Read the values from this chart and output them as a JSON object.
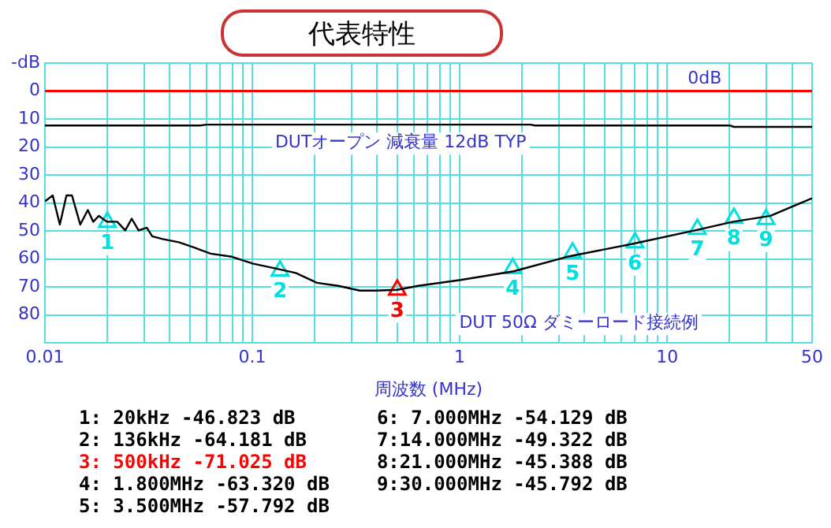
{
  "chart_data": {
    "type": "line",
    "title": "代表特性",
    "xlabel": "周波数 (MHz)",
    "log": "x",
    "grid": true,
    "legend": false,
    "line_style": "solid",
    "marker": "none",
    "xlim": [
      0.01,
      50
    ],
    "xticks": [
      0.01,
      {
        "value": 0.02,
        "label": null
      },
      {
        "value": 0.03,
        "label": null
      },
      {
        "value": 0.04,
        "label": null
      },
      {
        "value": 0.05,
        "label": null
      },
      {
        "value": 0.06,
        "label": null
      },
      {
        "value": 0.07,
        "label": null
      },
      {
        "value": 0.08,
        "label": null
      },
      {
        "value": 0.09,
        "label": null
      },
      0.1,
      {
        "value": 0.2,
        "label": null
      },
      {
        "value": 0.3,
        "label": null
      },
      {
        "value": 0.4,
        "label": null
      },
      {
        "value": 0.5,
        "label": null
      },
      {
        "value": 0.6,
        "label": null
      },
      {
        "value": 0.7,
        "label": null
      },
      {
        "value": 0.8,
        "label": null
      },
      {
        "value": 0.9,
        "label": null
      },
      1,
      {
        "value": 2,
        "label": null
      },
      {
        "value": 3,
        "label": null
      },
      {
        "value": 4,
        "label": null
      },
      {
        "value": 5,
        "label": null
      },
      {
        "value": 6,
        "label": null
      },
      {
        "value": 7,
        "label": null
      },
      {
        "value": 8,
        "label": null
      },
      {
        "value": 9,
        "label": null
      },
      10,
      {
        "value": 20,
        "label": null
      },
      {
        "value": 30,
        "label": null
      },
      {
        "value": 40,
        "label": null
      },
      50
    ],
    "ylim": [
      90,
      -10
    ],
    "yticks": [
      {
        "value": -10,
        "label": "-dB"
      },
      0,
      10,
      20,
      30,
      40,
      50,
      60,
      70,
      80
    ],
    "ref_lines": [
      {
        "axis": "y",
        "value": 0,
        "label": "0dB",
        "color": "#ff0000"
      }
    ],
    "series": [
      {
        "name": "DUTオープン 減衰量 12dB TYP",
        "color": "#000000",
        "x": [
          0.01,
          0.056,
          0.06,
          2.2,
          2.3,
          20,
          21,
          50
        ],
        "values": [
          12.3,
          12.3,
          12,
          12,
          12.3,
          12.3,
          12.8,
          12.8
        ]
      },
      {
        "name": "DUT 50Ω ダミーロード接続例",
        "color": "#000000",
        "x": [
          0.01,
          0.0109,
          0.0118,
          0.0127,
          0.0135,
          0.0148,
          0.0161,
          0.0171,
          0.0182,
          0.0199,
          0.0223,
          0.0244,
          0.0262,
          0.0283,
          0.031,
          0.0329,
          0.037,
          0.0442,
          0.0528,
          0.063,
          0.0797,
          0.101,
          0.128,
          0.162,
          0.205,
          0.26,
          0.33,
          0.395,
          0.5,
          0.63,
          1.01,
          1.82,
          3.3,
          6.8,
          13.6,
          20.8,
          31.5,
          39.5,
          50
        ],
        "values": [
          39.4,
          37.3,
          47.7,
          37.3,
          37.3,
          47.7,
          42.5,
          46.7,
          44.6,
          46.7,
          46.7,
          49.8,
          45.6,
          49.8,
          48.8,
          51.9,
          52.9,
          54,
          56,
          58.1,
          59.2,
          61.7,
          63.3,
          65,
          68.5,
          69.6,
          71.3,
          71.3,
          71,
          69.6,
          67.5,
          64.4,
          59.2,
          54.6,
          49.8,
          46.7,
          44.6,
          41.5,
          38.3
        ]
      },
      {
        "type": "scatter",
        "marker": "triangle",
        "x": [
          0.02,
          0.136,
          0.5,
          1.8,
          3.5,
          7,
          14,
          21,
          30
        ],
        "values": [
          46.823,
          64.181,
          71.025,
          63.32,
          57.792,
          54.129,
          49.322,
          45.388,
          45.792
        ],
        "colors": [
          "#00e0e0",
          "#00e0e0",
          "#ff0000",
          "#00e0e0",
          "#00e0e0",
          "#00e0e0",
          "#00e0e0",
          "#00e0e0",
          "#00e0e0"
        ]
      }
    ],
    "annotations": [
      {
        "text": "1",
        "x": 0.02,
        "y": 46.823
      },
      {
        "text": "2",
        "x": 0.136,
        "y": 64.181
      },
      {
        "text": "3",
        "x": 0.5,
        "y": 71.025
      },
      {
        "text": "4",
        "x": 1.8,
        "y": 63.32
      },
      {
        "text": "5",
        "x": 3.5,
        "y": 57.792
      },
      {
        "text": "6",
        "x": 7,
        "y": 54.129
      },
      {
        "text": "7",
        "x": 14,
        "y": 49.322
      },
      {
        "text": "8",
        "x": 21,
        "y": 45.388
      },
      {
        "text": "9",
        "x": 30,
        "y": 45.792
      },
      "1: 20kHz -46.823 dB",
      "2: 136kHz -64.181 dB",
      "3: 500kHz -71.025 dB",
      "4: 1.800MHz -63.320 dB",
      "5: 3.500MHz -57.792 dB",
      "6: 7.000MHz -54.129 dB",
      "7:14.000MHz -49.322 dB",
      "8:21.000MHz -45.388 dB",
      "9:30.000MHz -45.792 dB"
    ]
  }
}
